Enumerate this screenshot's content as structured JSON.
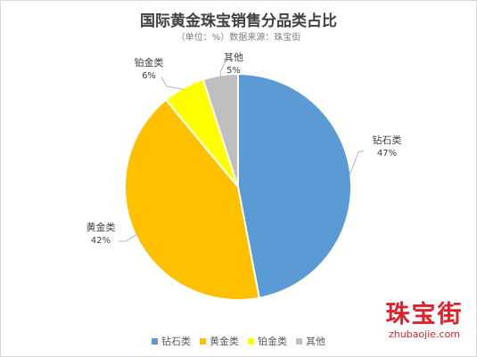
{
  "chart_data": {
    "type": "pie",
    "title": "国际黄金珠宝销售分品类占比",
    "subtitle": "（单位：%）数据来源：珠宝街",
    "slices": [
      {
        "name": "钻石类",
        "value": 47,
        "label": "47%",
        "color": "#5b9bd5"
      },
      {
        "name": "黄金类",
        "value": 42,
        "label": "42%",
        "color": "#ffc000"
      },
      {
        "name": "铂金类",
        "value": 6,
        "label": "6%",
        "color": "#ffff00"
      },
      {
        "name": "其他",
        "value": 5,
        "label": "5%",
        "color": "#bfbfbf"
      }
    ],
    "legend_position": "bottom"
  },
  "watermark": {
    "cn": "珠宝街",
    "en": "zhubaojie.com"
  }
}
